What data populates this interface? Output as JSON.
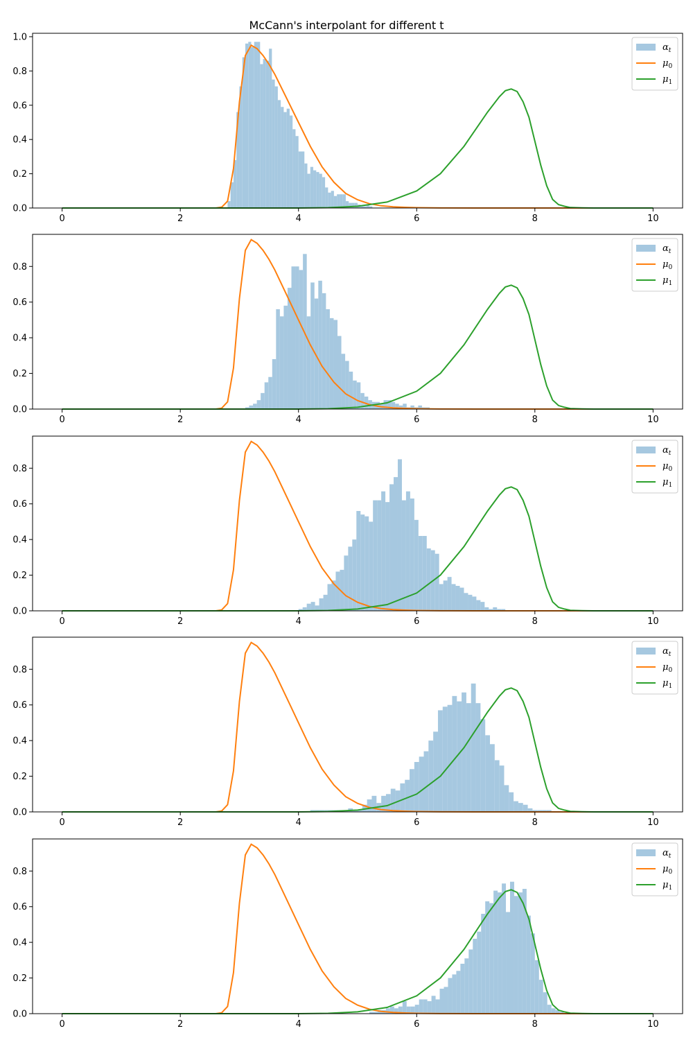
{
  "title": "McCann's interpolant for different t",
  "colors": {
    "hist": "#a6c8e0",
    "mu0": "#ff7f0e",
    "mu1": "#2ca02c"
  },
  "legend": [
    {
      "key": "hist",
      "base": "α",
      "sub": "t"
    },
    {
      "key": "mu0",
      "base": "μ",
      "sub": "0"
    },
    {
      "key": "mu1",
      "base": "μ",
      "sub": "1"
    }
  ],
  "chart_data": [
    {
      "type": "bar",
      "xlim": [
        -0.5,
        10.5
      ],
      "ylim": [
        0,
        1.02
      ],
      "xticks": [
        "0",
        "2",
        "4",
        "6",
        "8",
        "10"
      ],
      "yticks": [
        "0.0",
        "0.2",
        "0.4",
        "0.6",
        "0.8",
        "1.0"
      ],
      "legend_position": "top-right",
      "hist": {
        "name": "α_t",
        "start": 2.8,
        "width": 0.05,
        "values": [
          0.04,
          0.15,
          0.28,
          0.56,
          0.71,
          0.88,
          0.96,
          0.97,
          0.94,
          0.97,
          0.97,
          0.84,
          0.87,
          0.86,
          0.93,
          0.75,
          0.71,
          0.63,
          0.59,
          0.56,
          0.58,
          0.54,
          0.46,
          0.42,
          0.33,
          0.33,
          0.26,
          0.2,
          0.24,
          0.22,
          0.21,
          0.2,
          0.18,
          0.12,
          0.09,
          0.1,
          0.07,
          0.08,
          0.08,
          0.08,
          0.04,
          0.03,
          0.03,
          0.03,
          0.02,
          0.01,
          0.01,
          0.02,
          0.01
        ]
      }
    },
    {
      "type": "bar",
      "xlim": [
        -0.5,
        10.5
      ],
      "ylim": [
        0,
        0.98
      ],
      "xticks": [
        "0",
        "2",
        "4",
        "6",
        "8",
        "10"
      ],
      "yticks": [
        "0.0",
        "0.2",
        "0.4",
        "0.6",
        "0.8"
      ],
      "legend_position": "top-right",
      "hist": {
        "name": "α_t",
        "start": 3.1,
        "width": 0.065,
        "values": [
          0.01,
          0.02,
          0.03,
          0.05,
          0.09,
          0.15,
          0.18,
          0.28,
          0.56,
          0.52,
          0.58,
          0.68,
          0.8,
          0.8,
          0.78,
          0.87,
          0.52,
          0.71,
          0.62,
          0.72,
          0.65,
          0.56,
          0.51,
          0.5,
          0.41,
          0.31,
          0.27,
          0.21,
          0.16,
          0.15,
          0.09,
          0.07,
          0.05,
          0.04,
          0.04,
          0.03,
          0.05,
          0.05,
          0.04,
          0.03,
          0.02,
          0.03,
          0.01,
          0.02,
          0.01,
          0.02,
          0.01,
          0.01
        ]
      }
    },
    {
      "type": "bar",
      "xlim": [
        -0.5,
        10.5
      ],
      "ylim": [
        0,
        0.98
      ],
      "xticks": [
        "0",
        "2",
        "4",
        "6",
        "8",
        "10"
      ],
      "yticks": [
        "0.0",
        "0.2",
        "0.4",
        "0.6",
        "0.8"
      ],
      "legend_position": "top-right",
      "hist": {
        "name": "α_t",
        "start": 4.0,
        "width": 0.07,
        "values": [
          0.01,
          0.02,
          0.04,
          0.05,
          0.03,
          0.07,
          0.09,
          0.15,
          0.17,
          0.22,
          0.23,
          0.31,
          0.36,
          0.4,
          0.56,
          0.54,
          0.53,
          0.5,
          0.62,
          0.62,
          0.67,
          0.61,
          0.71,
          0.75,
          0.85,
          0.62,
          0.67,
          0.63,
          0.51,
          0.42,
          0.42,
          0.35,
          0.34,
          0.32,
          0.15,
          0.17,
          0.19,
          0.15,
          0.14,
          0.13,
          0.1,
          0.09,
          0.08,
          0.06,
          0.05,
          0.02,
          0.01,
          0.02,
          0.01,
          0.01
        ]
      }
    },
    {
      "type": "bar",
      "xlim": [
        -0.5,
        10.5
      ],
      "ylim": [
        0,
        0.98
      ],
      "xticks": [
        "0",
        "2",
        "4",
        "6",
        "8",
        "10"
      ],
      "yticks": [
        "0.0",
        "0.2",
        "0.4",
        "0.6",
        "0.8"
      ],
      "legend_position": "top-right",
      "hist": {
        "name": "α_t",
        "start": 4.2,
        "width": 0.08,
        "values": [
          0.01,
          0.01,
          0.01,
          0.01,
          0.01,
          0.01,
          0.01,
          0.01,
          0.02,
          0.01,
          0.01,
          0.04,
          0.07,
          0.09,
          0.05,
          0.09,
          0.1,
          0.13,
          0.12,
          0.16,
          0.18,
          0.24,
          0.28,
          0.31,
          0.34,
          0.4,
          0.45,
          0.57,
          0.59,
          0.6,
          0.65,
          0.62,
          0.67,
          0.61,
          0.72,
          0.61,
          0.52,
          0.43,
          0.38,
          0.29,
          0.26,
          0.15,
          0.11,
          0.06,
          0.05,
          0.04,
          0.02,
          0.01,
          0.01,
          0.01,
          0.01
        ]
      }
    },
    {
      "type": "bar",
      "xlim": [
        -0.5,
        10.5
      ],
      "ylim": [
        0,
        0.98
      ],
      "xticks": [
        "0",
        "2",
        "4",
        "6",
        "8",
        "10"
      ],
      "yticks": [
        "0.0",
        "0.2",
        "0.4",
        "0.6",
        "0.8"
      ],
      "legend_position": "top-right",
      "hist": {
        "name": "α_t",
        "start": 5.2,
        "width": 0.07,
        "values": [
          0.01,
          0.01,
          0.02,
          0.02,
          0.03,
          0.04,
          0.03,
          0.04,
          0.07,
          0.04,
          0.04,
          0.05,
          0.08,
          0.08,
          0.07,
          0.1,
          0.08,
          0.14,
          0.15,
          0.2,
          0.22,
          0.24,
          0.28,
          0.31,
          0.36,
          0.42,
          0.46,
          0.56,
          0.63,
          0.62,
          0.69,
          0.68,
          0.73,
          0.57,
          0.74,
          0.66,
          0.68,
          0.7,
          0.55,
          0.45,
          0.3,
          0.19,
          0.12,
          0.05,
          0.03,
          0.02,
          0.01
        ]
      }
    }
  ],
  "curves": {
    "mu0": {
      "name": "μ_0",
      "x": [
        0,
        2.6,
        2.7,
        2.8,
        2.9,
        3.0,
        3.1,
        3.2,
        3.3,
        3.4,
        3.5,
        3.6,
        3.8,
        4.0,
        4.2,
        4.4,
        4.6,
        4.8,
        5.0,
        5.2,
        5.4,
        5.6,
        5.8,
        6.0,
        6.5,
        7.0,
        10.0
      ],
      "y": [
        0,
        0.0,
        0.005,
        0.04,
        0.23,
        0.62,
        0.89,
        0.95,
        0.93,
        0.89,
        0.84,
        0.78,
        0.64,
        0.5,
        0.36,
        0.24,
        0.15,
        0.085,
        0.048,
        0.025,
        0.013,
        0.007,
        0.004,
        0.002,
        0.0005,
        0.0,
        0.0
      ]
    },
    "mu1": {
      "name": "μ_1",
      "x": [
        0,
        3.0,
        4.0,
        4.5,
        5.0,
        5.5,
        6.0,
        6.4,
        6.8,
        7.0,
        7.2,
        7.4,
        7.5,
        7.6,
        7.7,
        7.8,
        7.9,
        8.0,
        8.1,
        8.2,
        8.3,
        8.4,
        8.5,
        8.6,
        8.8,
        9.0,
        10.0
      ],
      "y": [
        0,
        0.0,
        0.0,
        0.002,
        0.01,
        0.035,
        0.1,
        0.2,
        0.36,
        0.46,
        0.56,
        0.65,
        0.685,
        0.695,
        0.68,
        0.62,
        0.53,
        0.39,
        0.25,
        0.13,
        0.05,
        0.02,
        0.01,
        0.003,
        0.001,
        0.0,
        0.0
      ]
    }
  }
}
